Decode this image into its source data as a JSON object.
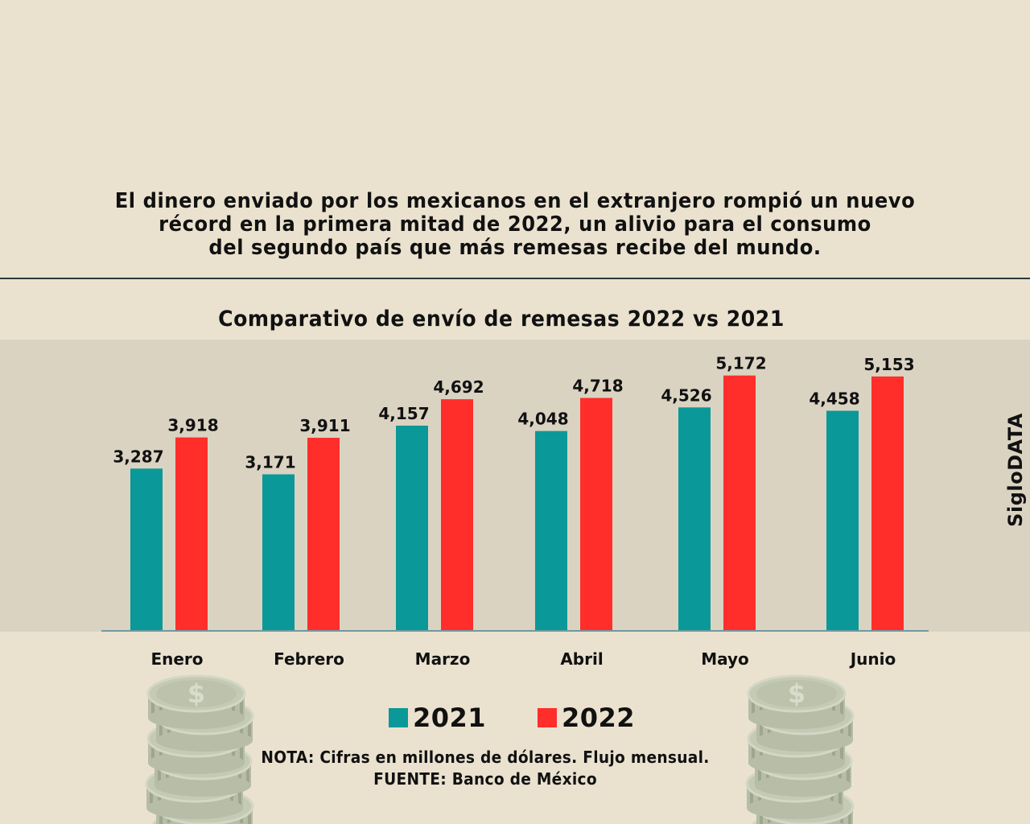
{
  "headline": "El dinero enviado por los mexicanos en el extranjero rompió un nuevo\nrécord en la primera mitad de 2022, un alivio para el consumo\ndel segundo país que más remesas recibe del mundo.",
  "watermark": "SigloDATA",
  "note": "NOTA: Cifras en millones de dólares. Flujo mensual.",
  "source": "FUENTE: Banco de México",
  "colors": {
    "background": "#eae2cf",
    "plot_background": "#dbd3c2",
    "series_2021": "#0b9898",
    "series_2022": "#ff2e2a",
    "coin": "#c5cab5"
  },
  "chart_data": {
    "type": "bar",
    "title": "Comparativo de envío de remesas 2022 vs 2021",
    "xlabel": "",
    "ylabel": "",
    "unit": "millones de dólares",
    "categories": [
      "Enero",
      "Febrero",
      "Marzo",
      "Abril",
      "Mayo",
      "Junio"
    ],
    "series": [
      {
        "name": "2021",
        "color": "#0b9898",
        "values": [
          3287,
          3171,
          4157,
          4048,
          4526,
          4458
        ],
        "labels": [
          "3,287",
          "3,171",
          "4,157",
          "4,048",
          "4,526",
          "4,458"
        ]
      },
      {
        "name": "2022",
        "color": "#ff2e2a",
        "values": [
          3918,
          3911,
          4692,
          4718,
          5172,
          5153
        ],
        "labels": [
          "3,918",
          "3,911",
          "4,692",
          "4,718",
          "5,172",
          "5,153"
        ]
      }
    ],
    "ylim": [
      0,
      5900
    ],
    "grid": false,
    "legend": "bottom-center",
    "data_labels": true
  }
}
